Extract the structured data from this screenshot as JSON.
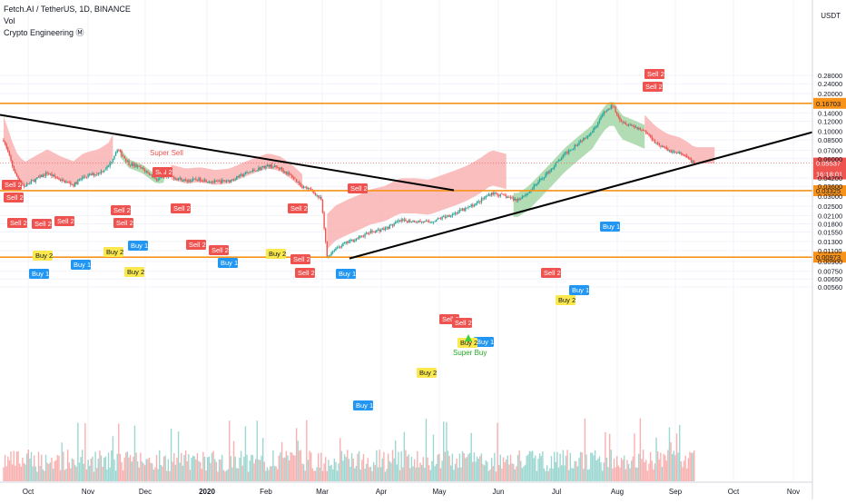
{
  "header": {
    "title": "Fetch.AI / TetherUS, 1D, BINANCE",
    "indicator_1": "Vol",
    "indicator_2": "Crypto Engineering Ⓜ"
  },
  "axis": {
    "currency": "USDT"
  },
  "colors": {
    "up": "#26a69a",
    "down": "#ef5350",
    "cloud_bear": "#f8b3b1",
    "cloud_bull": "#a5d6a7",
    "level": "#f7931a",
    "trend": "#000000",
    "buy": "#2196f3",
    "buy2": "#fbe84c",
    "sell": "#ef5350",
    "current": "#ef5350"
  },
  "chart_data": {
    "type": "candlestick",
    "y_scale": "log",
    "ylim": [
      0.0054,
      0.28
    ],
    "y_ticks": [
      "0.28000",
      "0.24000",
      "0.20000",
      "0.14000",
      "0.12000",
      "0.10000",
      "0.08500",
      "0.07000",
      "0.06000",
      "0.04200",
      "0.03600",
      "0.03000",
      "0.02500",
      "0.02100",
      "0.01800",
      "0.01550",
      "0.01300",
      "0.01100",
      "0.00900",
      "0.00750",
      "0.00650",
      "0.00560"
    ],
    "x_labels": [
      "Oct",
      "Nov",
      "Dec",
      "2020",
      "Feb",
      "Mar",
      "Apr",
      "May",
      "Jun",
      "Jul",
      "Aug",
      "Sep",
      "Oct",
      "Nov"
    ],
    "levels": [
      {
        "value": 0.16703,
        "label": "0.16703"
      },
      {
        "value": 0.03325,
        "label": "0.03325"
      },
      {
        "value": 0.00973,
        "label": "0.00973"
      }
    ],
    "current": {
      "price": "0.05537",
      "countdown": "16:18:01"
    },
    "signals": [
      {
        "text": "Sell 1",
        "kind": "sell"
      },
      {
        "text": "Sell 2",
        "kind": "sell"
      },
      {
        "text": "Super Sell",
        "kind": "super-sell"
      },
      {
        "text": "Buy 1",
        "kind": "buy"
      },
      {
        "text": "Buy 2",
        "kind": "buy2"
      },
      {
        "text": "Super Buy",
        "kind": "super-buy"
      }
    ]
  }
}
